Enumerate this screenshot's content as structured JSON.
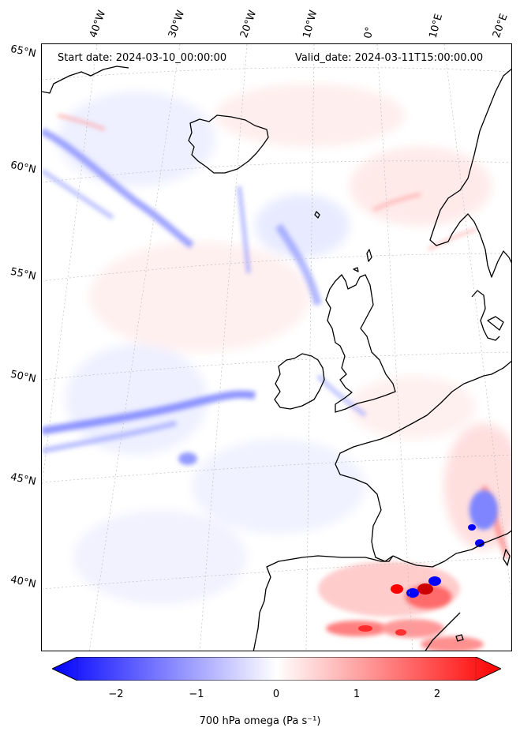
{
  "map": {
    "start_label": "Start date: 2024-03-10_00:00:00",
    "valid_label": "Valid_date: 2024-03-11T15:00:00.00",
    "lon_labels": [
      "40°W",
      "30°W",
      "20°W",
      "10°W",
      "0°",
      "10°E",
      "20°E"
    ],
    "lat_labels": [
      "65°N",
      "60°N",
      "55°N",
      "50°N",
      "45°N",
      "40°N"
    ],
    "gridlines": "dotted grey"
  },
  "colorbar": {
    "ticks": [
      "−2",
      "−1",
      "0",
      "1",
      "2"
    ],
    "label": "700 hPa omega (Pa s⁻¹)",
    "range": [
      -2.6,
      2.6
    ],
    "colormap": "bwr",
    "colors": {
      "negative": "#0000ff",
      "zero": "#ffffff",
      "positive": "#ff0000"
    },
    "extend": "both"
  }
}
